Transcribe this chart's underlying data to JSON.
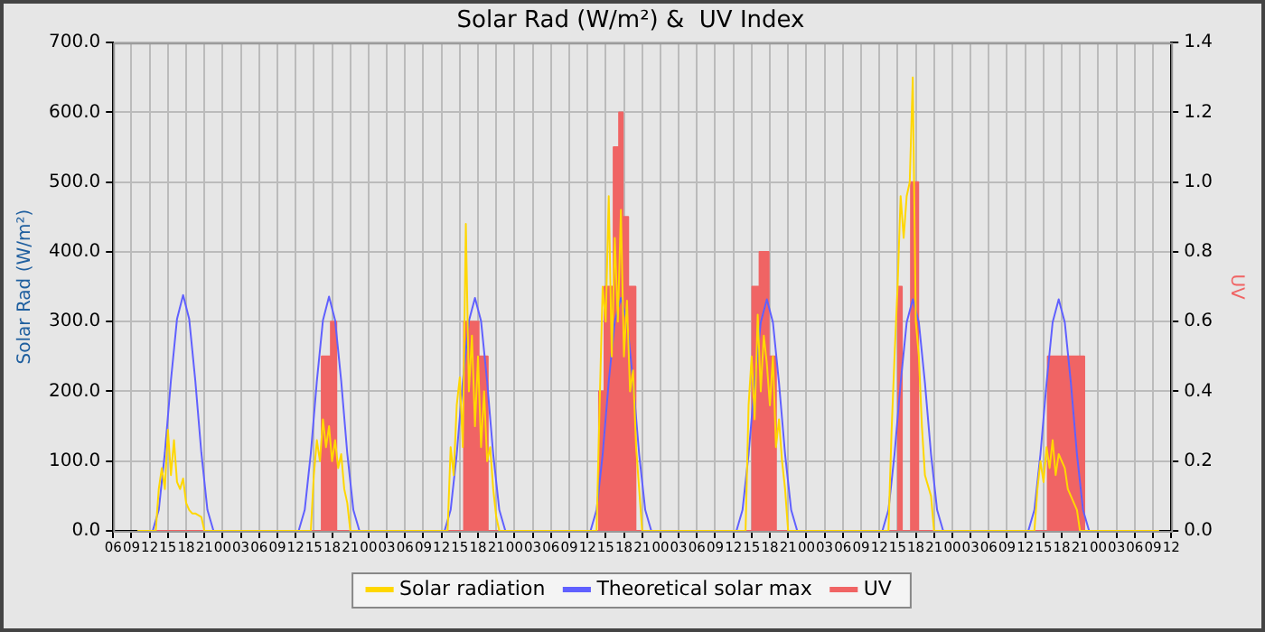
{
  "chart_data": {
    "type": "line",
    "title": "Solar Rad (W/m²) &  UV Index",
    "ylabel": "Solar Rad (W/m²)",
    "y2label": "UV",
    "xlim": [
      6,
      180
    ],
    "xticks": [
      {
        "value": 6,
        "label": "06"
      },
      {
        "value": 9,
        "label": "09"
      },
      {
        "value": 12,
        "label": "12"
      },
      {
        "value": 15,
        "label": "15"
      },
      {
        "value": 18,
        "label": "18"
      },
      {
        "value": 21,
        "label": "21"
      },
      {
        "value": 24,
        "label": "00"
      },
      {
        "value": 27,
        "label": "03"
      },
      {
        "value": 30,
        "label": "06"
      },
      {
        "value": 33,
        "label": "09"
      },
      {
        "value": 36,
        "label": "12"
      },
      {
        "value": 39,
        "label": "15"
      },
      {
        "value": 42,
        "label": "18"
      },
      {
        "value": 45,
        "label": "21"
      },
      {
        "value": 48,
        "label": "00"
      },
      {
        "value": 51,
        "label": "03"
      },
      {
        "value": 54,
        "label": "06"
      },
      {
        "value": 57,
        "label": "09"
      },
      {
        "value": 60,
        "label": "12"
      },
      {
        "value": 63,
        "label": "15"
      },
      {
        "value": 66,
        "label": "18"
      },
      {
        "value": 69,
        "label": "21"
      },
      {
        "value": 72,
        "label": "00"
      },
      {
        "value": 75,
        "label": "03"
      },
      {
        "value": 78,
        "label": "06"
      },
      {
        "value": 81,
        "label": "09"
      },
      {
        "value": 84,
        "label": "12"
      },
      {
        "value": 87,
        "label": "15"
      },
      {
        "value": 90,
        "label": "18"
      },
      {
        "value": 93,
        "label": "21"
      },
      {
        "value": 96,
        "label": "00"
      },
      {
        "value": 99,
        "label": "03"
      },
      {
        "value": 102,
        "label": "06"
      },
      {
        "value": 105,
        "label": "09"
      },
      {
        "value": 108,
        "label": "12"
      },
      {
        "value": 111,
        "label": "15"
      },
      {
        "value": 114,
        "label": "18"
      },
      {
        "value": 117,
        "label": "21"
      },
      {
        "value": 120,
        "label": "00"
      },
      {
        "value": 123,
        "label": "03"
      },
      {
        "value": 126,
        "label": "06"
      },
      {
        "value": 129,
        "label": "09"
      },
      {
        "value": 132,
        "label": "12"
      },
      {
        "value": 135,
        "label": "15"
      },
      {
        "value": 138,
        "label": "18"
      },
      {
        "value": 141,
        "label": "21"
      },
      {
        "value": 144,
        "label": "00"
      },
      {
        "value": 147,
        "label": "03"
      },
      {
        "value": 150,
        "label": "06"
      },
      {
        "value": 153,
        "label": "09"
      },
      {
        "value": 156,
        "label": "12"
      },
      {
        "value": 159,
        "label": "15"
      },
      {
        "value": 162,
        "label": "18"
      },
      {
        "value": 165,
        "label": "21"
      },
      {
        "value": 168,
        "label": "00"
      },
      {
        "value": 171,
        "label": "03"
      },
      {
        "value": 174,
        "label": "06"
      },
      {
        "value": 177,
        "label": "09"
      },
      {
        "value": 180,
        "label": "12"
      }
    ],
    "ylim": [
      0,
      700
    ],
    "yticks": [
      {
        "value": 0,
        "label": "0.0"
      },
      {
        "value": 100,
        "label": "100.0"
      },
      {
        "value": 200,
        "label": "200.0"
      },
      {
        "value": 300,
        "label": "300.0"
      },
      {
        "value": 400,
        "label": "400.0"
      },
      {
        "value": 500,
        "label": "500.0"
      },
      {
        "value": 600,
        "label": "600.0"
      },
      {
        "value": 700,
        "label": "700.0"
      }
    ],
    "y2lim": [
      0,
      1.4
    ],
    "y2ticks": [
      {
        "value": 0,
        "label": "0.0"
      },
      {
        "value": 0.2,
        "label": "0.2"
      },
      {
        "value": 0.4,
        "label": "0.4"
      },
      {
        "value": 0.6,
        "label": "0.6"
      },
      {
        "value": 0.8,
        "label": "0.8"
      },
      {
        "value": 1,
        "label": "1.0"
      },
      {
        "value": 1.2,
        "label": "1.2"
      },
      {
        "value": 1.4,
        "label": "1.4"
      }
    ],
    "grid": true,
    "legend": "bottom",
    "marker": "none",
    "line_style": "solid",
    "series": [
      {
        "name": "Solar radiation",
        "type": "line",
        "color": "#ffd700",
        "x": [
          10,
          13,
          13.5,
          14,
          14.5,
          15,
          15.5,
          16,
          16.5,
          17,
          17.5,
          18,
          18.5,
          19,
          19.5,
          20.5,
          21,
          38.5,
          39,
          39.5,
          40,
          40.5,
          41,
          41.5,
          42,
          42.5,
          43,
          43.5,
          44,
          44.5,
          45,
          61,
          61.5,
          62,
          62.5,
          63,
          63.5,
          64,
          64.5,
          65,
          65.5,
          66,
          66.5,
          67,
          67.5,
          68,
          68.5,
          69,
          69.5,
          85.5,
          86,
          86.5,
          87,
          87.5,
          88,
          88.5,
          89,
          89.5,
          90,
          90.5,
          91,
          91.5,
          92,
          92.5,
          93,
          110,
          110.5,
          111,
          111.5,
          112,
          112.5,
          113,
          113.5,
          114,
          114.5,
          115,
          115.5,
          116,
          116.5,
          117,
          133.5,
          134,
          134.5,
          135,
          135.5,
          136,
          136.5,
          137,
          137.5,
          138,
          138.5,
          139,
          139.5,
          140.5,
          141,
          157.5,
          158,
          158.5,
          159,
          159.5,
          160,
          160.5,
          161,
          161.5,
          162,
          162.5,
          163,
          163.5,
          164.5,
          165,
          178
        ],
        "values": [
          0,
          0,
          60,
          90,
          60,
          145,
          80,
          130,
          70,
          60,
          75,
          40,
          30,
          25,
          25,
          20,
          0,
          0,
          80,
          130,
          100,
          160,
          120,
          150,
          100,
          130,
          90,
          110,
          60,
          40,
          0,
          0,
          120,
          80,
          180,
          220,
          120,
          440,
          200,
          280,
          150,
          250,
          120,
          200,
          100,
          120,
          60,
          20,
          0,
          0,
          180,
          350,
          300,
          480,
          250,
          420,
          300,
          460,
          250,
          330,
          200,
          230,
          120,
          60,
          0,
          0,
          180,
          250,
          160,
          310,
          200,
          280,
          240,
          180,
          250,
          120,
          160,
          100,
          60,
          0,
          0,
          140,
          250,
          350,
          480,
          420,
          480,
          500,
          650,
          300,
          250,
          150,
          80,
          50,
          0,
          0,
          60,
          100,
          70,
          120,
          90,
          130,
          80,
          110,
          100,
          90,
          60,
          50,
          30,
          0,
          0
        ]
      },
      {
        "name": "Theoretical solar max",
        "type": "line",
        "color": "#6060ff",
        "x": [
          10,
          12.5,
          13.5,
          14.5,
          15.5,
          16.5,
          17.5,
          18.5,
          19.5,
          20.5,
          21.5,
          22.5,
          36.5,
          37.5,
          38.5,
          39.5,
          40.5,
          41.5,
          42.5,
          43.5,
          44.5,
          45.5,
          46.5,
          60.5,
          61.5,
          62.5,
          63.5,
          64.5,
          65.5,
          66.5,
          67.5,
          68.5,
          69.5,
          70.5,
          84.5,
          85.5,
          86.5,
          87.5,
          88.5,
          89.5,
          90.5,
          91.5,
          92.5,
          93.5,
          94.5,
          108.5,
          109.5,
          110.5,
          111.5,
          112.5,
          113.5,
          114.5,
          115.5,
          116.5,
          117.5,
          118.5,
          132.5,
          133.5,
          134.5,
          135.5,
          136.5,
          137.5,
          138.5,
          139.5,
          140.5,
          141.5,
          142.5,
          156.5,
          157.5,
          158.5,
          159.5,
          160.5,
          161.5,
          162.5,
          163.5,
          164.5,
          165.5,
          166.5,
          178
        ],
        "values": [
          0,
          0,
          30,
          112,
          216,
          304,
          338,
          304,
          216,
          112,
          30,
          0,
          0,
          30,
          111,
          215,
          302,
          336,
          302,
          215,
          111,
          30,
          0,
          0,
          30,
          110,
          214,
          301,
          334,
          301,
          214,
          110,
          30,
          0,
          0,
          30,
          110,
          214,
          301,
          334,
          301,
          214,
          110,
          30,
          0,
          0,
          30,
          110,
          212,
          299,
          332,
          299,
          212,
          110,
          30,
          0,
          0,
          30,
          110,
          212,
          299,
          332,
          299,
          212,
          110,
          30,
          0,
          0,
          30,
          110,
          212,
          299,
          332,
          299,
          212,
          110,
          30,
          0,
          0
        ]
      },
      {
        "name": "UV",
        "type": "area",
        "axis": "y2",
        "color": "#f06464",
        "x": [
          10,
          40.3,
          40.3,
          41.8,
          41.8,
          42.7,
          42.7,
          63.7,
          63.7,
          66.1,
          66.1,
          67.6,
          67.6,
          85.9,
          85.9,
          86.8,
          86.8,
          88.3,
          88.3,
          89.2,
          89.2,
          89.8,
          89.8,
          90.7,
          90.7,
          91.9,
          91.9,
          111.1,
          111.1,
          112.3,
          112.3,
          113.8,
          113.8,
          115,
          115,
          135.1,
          135.1,
          135.7,
          135.7,
          137.2,
          137.2,
          138.4,
          138.4,
          159.7,
          159.7,
          165.7,
          165.7,
          178
        ],
        "values": [
          0,
          0,
          0.5,
          0.5,
          0.6,
          0.6,
          0,
          0,
          0.6,
          0.6,
          0.5,
          0.5,
          0,
          0,
          0.4,
          0.4,
          0.7,
          0.7,
          1.1,
          1.1,
          1.2,
          1.2,
          0.9,
          0.9,
          0.7,
          0.7,
          0,
          0,
          0.7,
          0.7,
          0.8,
          0.8,
          0.5,
          0.5,
          0,
          0,
          0.7,
          0.7,
          0,
          0,
          1,
          1,
          0,
          0,
          0.5,
          0.5,
          0,
          0
        ]
      }
    ]
  }
}
